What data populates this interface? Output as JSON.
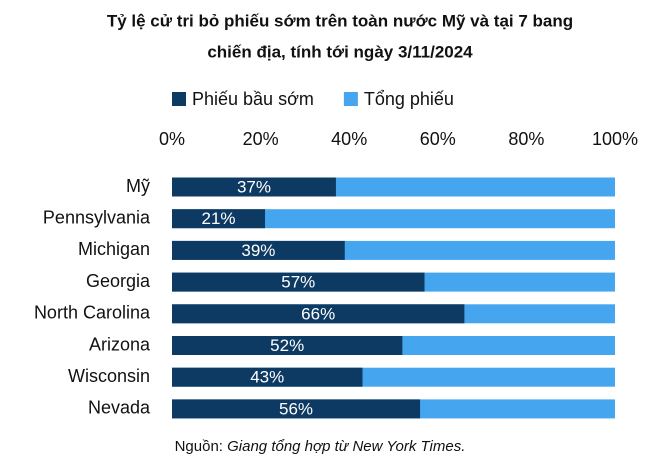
{
  "chart_data": {
    "type": "bar",
    "orientation": "horizontal",
    "title": [
      "Tỷ lệ cử tri bỏ phiếu sớm trên toàn nước Mỹ và tại 7 bang",
      "chiến địa, tính tới ngày 3/11/2024"
    ],
    "categories": [
      "Mỹ",
      "Pennsylvania",
      "Michigan",
      "Georgia",
      "North Carolina",
      "Arizona",
      "Wisconsin",
      "Nevada"
    ],
    "series": [
      {
        "name": "Tổng phiếu",
        "color": "#45a5ef",
        "values": [
          100,
          100,
          100,
          100,
          100,
          100,
          100,
          100
        ]
      },
      {
        "name": "Phiếu bầu sớm",
        "color": "#0d3a63",
        "values": [
          37,
          21,
          39,
          57,
          66,
          52,
          43,
          56
        ],
        "value_labels": [
          "37%",
          "21%",
          "39%",
          "57%",
          "66%",
          "52%",
          "43%",
          "56%"
        ]
      }
    ],
    "legend_order": [
      1,
      0
    ],
    "xlim": [
      0,
      100
    ],
    "xticks": [
      {
        "value": 0,
        "label": "0%"
      },
      {
        "value": 20,
        "label": "20%"
      },
      {
        "value": 40,
        "label": "40%"
      },
      {
        "value": 60,
        "label": "60%"
      },
      {
        "value": 80,
        "label": "80%"
      },
      {
        "value": 100,
        "label": "100%"
      }
    ],
    "xaxis_position": "top",
    "source_label": "Nguồn:",
    "source": "Giang tổng hợp từ New York Times."
  }
}
